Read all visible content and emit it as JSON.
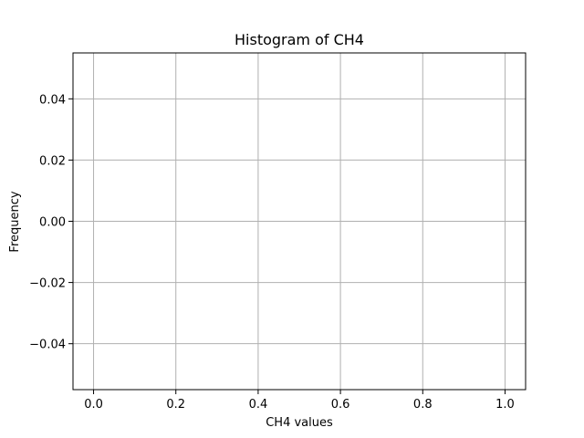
{
  "chart_data": {
    "type": "bar",
    "title": "Histogram of CH4",
    "xlabel": "CH4 values",
    "ylabel": "Frequency",
    "categories": [],
    "values": [],
    "xlim": [
      -0.05,
      1.05
    ],
    "ylim": [
      -0.055,
      0.055
    ],
    "x_ticks": [
      0.0,
      0.2,
      0.4,
      0.6,
      0.8,
      1.0
    ],
    "x_tick_labels": [
      "0.0",
      "0.2",
      "0.4",
      "0.6",
      "0.8",
      "1.0"
    ],
    "y_ticks": [
      -0.04,
      -0.02,
      0.0,
      0.02,
      0.04
    ],
    "y_tick_labels": [
      "−0.04",
      "−0.02",
      "0.00",
      "0.02",
      "0.04"
    ],
    "grid": true,
    "grid_color": "#b0b0b0"
  }
}
